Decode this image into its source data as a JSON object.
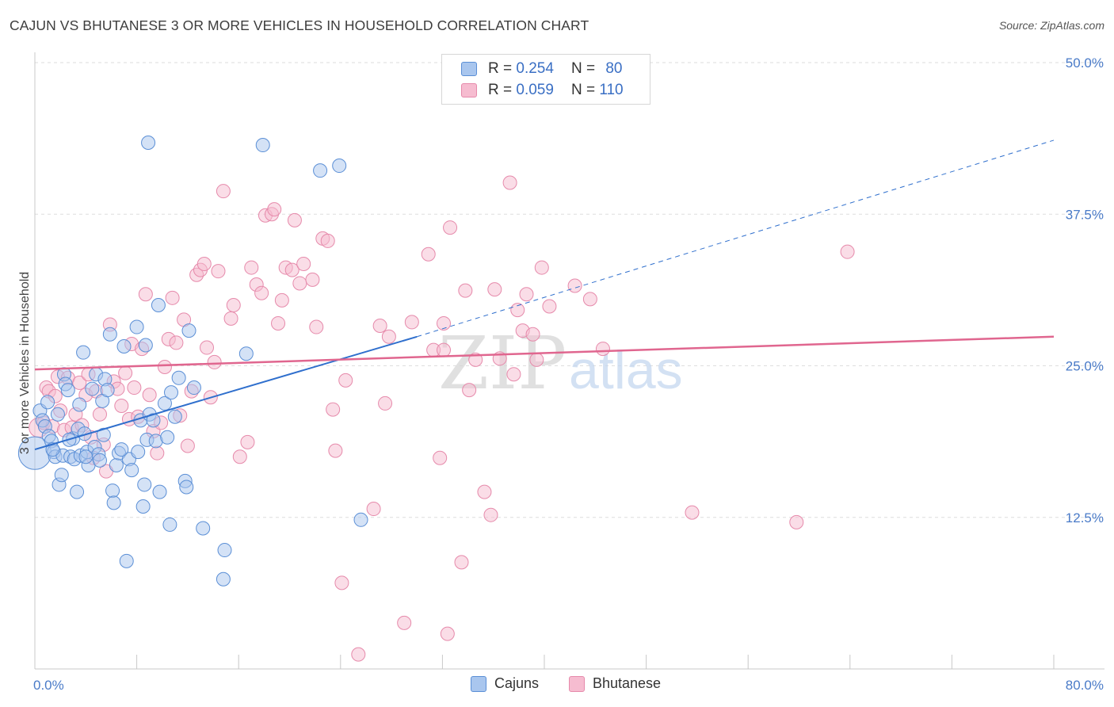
{
  "header": {
    "title": "CAJUN VS BHUTANESE 3 OR MORE VEHICLES IN HOUSEHOLD CORRELATION CHART",
    "source": "Source: ZipAtlas.com"
  },
  "legend": {
    "rows": [
      {
        "r_label": "R =",
        "r_value": "0.254",
        "n_label": "N =",
        "n_value": "80"
      },
      {
        "r_label": "R =",
        "r_value": "0.059",
        "n_label": "N =",
        "n_value": "110"
      }
    ]
  },
  "watermark": {
    "zip": "ZIP",
    "atlas": "atlas"
  },
  "colors": {
    "cajun_fill": "#a9c6ee",
    "cajun_stroke": "#5b8fd6",
    "cajun_line": "#2f6fcd",
    "bhutanese_fill": "#f6bcd0",
    "bhutanese_stroke": "#e68aab",
    "bhutanese_line": "#e0668f",
    "grid": "#dddddd",
    "axis_text": "#4a7bc8"
  },
  "chart_data": {
    "type": "scatter",
    "title": "CAJUN VS BHUTANESE 3 OR MORE VEHICLES IN HOUSEHOLD CORRELATION CHART",
    "xlabel": "",
    "ylabel": "3 or more Vehicles in Household",
    "xlim": [
      0,
      80
    ],
    "ylim": [
      0,
      50
    ],
    "x_tick_labels": [
      "0.0%",
      "80.0%"
    ],
    "y_ticks": [
      12.5,
      25.0,
      37.5,
      50.0
    ],
    "y_tick_labels": [
      "12.5%",
      "25.0%",
      "37.5%",
      "50.0%"
    ],
    "legend_position": "bottom-center",
    "series": [
      {
        "name": "Cajuns",
        "r": 0.254,
        "n": 80,
        "trend": {
          "x0": 0,
          "y0": 18.1,
          "x1": 30,
          "y1": 27.4,
          "dash_x1": 80,
          "dash_y1": 43.6
        },
        "points": [
          [
            0.0,
            17.8,
            1.7
          ],
          [
            0.4,
            21.3,
            0.7
          ],
          [
            0.6,
            20.5,
            0.7
          ],
          [
            0.8,
            20.0,
            0.7
          ],
          [
            1.0,
            22.0,
            0.7
          ],
          [
            1.1,
            19.2,
            0.7
          ],
          [
            1.3,
            18.8,
            0.7
          ],
          [
            1.5,
            17.9,
            0.7
          ],
          [
            1.6,
            17.5,
            0.7
          ],
          [
            1.8,
            21.0,
            0.7
          ],
          [
            1.9,
            15.2,
            0.7
          ],
          [
            2.1,
            16.0,
            0.7
          ],
          [
            2.2,
            17.6,
            0.7
          ],
          [
            2.3,
            24.3,
            0.7
          ],
          [
            2.4,
            23.5,
            0.7
          ],
          [
            2.6,
            23.0,
            0.7
          ],
          [
            2.8,
            17.5,
            0.7
          ],
          [
            3.0,
            19.0,
            0.7
          ],
          [
            3.1,
            17.3,
            0.7
          ],
          [
            3.3,
            14.6,
            0.7
          ],
          [
            3.4,
            19.8,
            0.7
          ],
          [
            3.5,
            21.8,
            0.7
          ],
          [
            3.6,
            17.6,
            0.7
          ],
          [
            3.8,
            26.1,
            0.7
          ],
          [
            3.9,
            19.4,
            0.7
          ],
          [
            4.1,
            17.9,
            0.7
          ],
          [
            4.2,
            16.8,
            0.7
          ],
          [
            4.5,
            23.1,
            0.7
          ],
          [
            4.7,
            18.3,
            0.7
          ],
          [
            4.8,
            24.3,
            0.7
          ],
          [
            5.0,
            17.7,
            0.7
          ],
          [
            5.1,
            17.2,
            0.7
          ],
          [
            5.3,
            22.1,
            0.7
          ],
          [
            5.5,
            23.9,
            0.7
          ],
          [
            5.7,
            23.0,
            0.7
          ],
          [
            5.9,
            27.6,
            0.7
          ],
          [
            6.1,
            14.7,
            0.7
          ],
          [
            6.2,
            13.7,
            0.7
          ],
          [
            6.4,
            16.8,
            0.7
          ],
          [
            6.6,
            17.8,
            0.7
          ],
          [
            7.0,
            26.6,
            0.7
          ],
          [
            7.2,
            8.9,
            0.7
          ],
          [
            7.4,
            17.3,
            0.7
          ],
          [
            7.6,
            16.4,
            0.7
          ],
          [
            8.0,
            28.2,
            0.7
          ],
          [
            8.1,
            17.9,
            0.7
          ],
          [
            8.3,
            20.5,
            0.7
          ],
          [
            8.5,
            13.4,
            0.7
          ],
          [
            8.6,
            15.2,
            0.7
          ],
          [
            8.8,
            18.9,
            0.7
          ],
          [
            8.9,
            43.4,
            0.7
          ],
          [
            8.7,
            26.7,
            0.7
          ],
          [
            9.0,
            21.0,
            0.7
          ],
          [
            9.3,
            20.5,
            0.7
          ],
          [
            9.5,
            18.8,
            0.7
          ],
          [
            9.7,
            30.0,
            0.7
          ],
          [
            9.8,
            14.6,
            0.7
          ],
          [
            10.2,
            21.9,
            0.7
          ],
          [
            10.4,
            19.1,
            0.7
          ],
          [
            10.6,
            11.9,
            0.7
          ],
          [
            10.7,
            22.8,
            0.7
          ],
          [
            11.0,
            20.8,
            0.7
          ],
          [
            11.3,
            24.0,
            0.7
          ],
          [
            11.8,
            15.5,
            0.7
          ],
          [
            11.9,
            15.0,
            0.7
          ],
          [
            12.1,
            27.9,
            0.7
          ],
          [
            12.5,
            23.2,
            0.7
          ],
          [
            13.2,
            11.6,
            0.7
          ],
          [
            14.9,
            9.8,
            0.7
          ],
          [
            14.8,
            7.4,
            0.7
          ],
          [
            16.6,
            26.0,
            0.7
          ],
          [
            17.9,
            43.2,
            0.7
          ],
          [
            22.4,
            41.1,
            0.7
          ],
          [
            23.9,
            41.5,
            0.7
          ],
          [
            25.6,
            12.3,
            0.7
          ],
          [
            1.4,
            18.1,
            0.7
          ],
          [
            2.7,
            18.9,
            0.7
          ],
          [
            4.0,
            17.5,
            0.7
          ],
          [
            5.4,
            19.3,
            0.7
          ],
          [
            6.8,
            18.1,
            0.7
          ]
        ]
      },
      {
        "name": "Bhutanese",
        "r": 0.059,
        "n": 110,
        "trend": {
          "x0": 0,
          "y0": 24.7,
          "x1": 80,
          "y1": 27.4
        },
        "points": [
          [
            0.3,
            19.9,
            1.0
          ],
          [
            0.7,
            20.3,
            0.7
          ],
          [
            0.9,
            23.2,
            0.7
          ],
          [
            1.1,
            22.9,
            0.7
          ],
          [
            1.4,
            20.0,
            0.7
          ],
          [
            1.6,
            22.5,
            0.7
          ],
          [
            1.8,
            24.1,
            0.7
          ],
          [
            2.0,
            21.3,
            0.7
          ],
          [
            2.3,
            19.7,
            0.7
          ],
          [
            2.6,
            24.0,
            0.7
          ],
          [
            2.9,
            19.9,
            0.7
          ],
          [
            3.2,
            21.0,
            0.7
          ],
          [
            3.5,
            23.6,
            0.7
          ],
          [
            3.7,
            20.1,
            0.7
          ],
          [
            4.0,
            22.6,
            0.7
          ],
          [
            4.2,
            24.3,
            0.7
          ],
          [
            4.4,
            19.1,
            0.7
          ],
          [
            4.6,
            17.4,
            0.7
          ],
          [
            4.8,
            22.9,
            0.7
          ],
          [
            5.1,
            21.0,
            0.7
          ],
          [
            5.4,
            18.5,
            0.7
          ],
          [
            5.6,
            16.3,
            0.7
          ],
          [
            5.9,
            28.4,
            0.7
          ],
          [
            6.2,
            23.7,
            0.7
          ],
          [
            6.5,
            23.1,
            0.7
          ],
          [
            6.8,
            21.7,
            0.7
          ],
          [
            7.1,
            24.4,
            0.7
          ],
          [
            7.4,
            20.6,
            0.7
          ],
          [
            7.6,
            26.8,
            0.7
          ],
          [
            7.8,
            23.2,
            0.7
          ],
          [
            8.1,
            20.8,
            0.7
          ],
          [
            8.4,
            26.4,
            0.7
          ],
          [
            8.7,
            30.9,
            0.7
          ],
          [
            9.0,
            22.6,
            0.7
          ],
          [
            9.3,
            19.6,
            0.7
          ],
          [
            9.6,
            17.8,
            0.7
          ],
          [
            9.9,
            20.3,
            0.7
          ],
          [
            10.2,
            24.9,
            0.7
          ],
          [
            10.5,
            27.2,
            0.7
          ],
          [
            10.8,
            30.6,
            0.7
          ],
          [
            11.1,
            26.9,
            0.7
          ],
          [
            11.4,
            20.9,
            0.7
          ],
          [
            11.7,
            28.8,
            0.7
          ],
          [
            12.0,
            18.4,
            0.7
          ],
          [
            12.3,
            22.9,
            0.7
          ],
          [
            12.7,
            32.5,
            0.7
          ],
          [
            13.0,
            32.9,
            0.7
          ],
          [
            13.3,
            33.4,
            0.7
          ],
          [
            13.5,
            26.5,
            0.7
          ],
          [
            13.8,
            22.4,
            0.7
          ],
          [
            14.1,
            25.3,
            0.7
          ],
          [
            14.4,
            32.8,
            0.7
          ],
          [
            14.8,
            39.4,
            0.7
          ],
          [
            15.4,
            28.9,
            0.7
          ],
          [
            15.6,
            30.0,
            0.7
          ],
          [
            16.1,
            17.5,
            0.7
          ],
          [
            16.7,
            18.7,
            0.7
          ],
          [
            17.0,
            33.1,
            0.7
          ],
          [
            17.4,
            31.7,
            0.7
          ],
          [
            17.8,
            31.0,
            0.7
          ],
          [
            18.1,
            37.4,
            0.7
          ],
          [
            18.6,
            37.5,
            0.7
          ],
          [
            18.8,
            37.9,
            0.7
          ],
          [
            19.1,
            28.5,
            0.7
          ],
          [
            19.4,
            30.4,
            0.7
          ],
          [
            19.7,
            33.1,
            0.7
          ],
          [
            20.2,
            32.9,
            0.7
          ],
          [
            20.4,
            37.0,
            0.7
          ],
          [
            20.8,
            31.8,
            0.7
          ],
          [
            21.1,
            33.4,
            0.7
          ],
          [
            21.8,
            32.1,
            0.7
          ],
          [
            22.1,
            28.2,
            0.7
          ],
          [
            22.6,
            35.5,
            0.7
          ],
          [
            23.0,
            35.3,
            0.7
          ],
          [
            23.4,
            21.4,
            0.7
          ],
          [
            23.6,
            18.0,
            0.7
          ],
          [
            24.1,
            7.1,
            0.7
          ],
          [
            24.4,
            23.8,
            0.7
          ],
          [
            25.4,
            1.2,
            0.7
          ],
          [
            26.6,
            13.2,
            0.7
          ],
          [
            27.1,
            28.3,
            0.7
          ],
          [
            27.5,
            21.9,
            0.7
          ],
          [
            27.8,
            27.4,
            0.7
          ],
          [
            29.0,
            3.8,
            0.7
          ],
          [
            29.6,
            28.6,
            0.7
          ],
          [
            30.9,
            34.2,
            0.7
          ],
          [
            31.3,
            26.3,
            0.7
          ],
          [
            31.8,
            17.4,
            0.7
          ],
          [
            32.1,
            28.5,
            0.7
          ],
          [
            32.1,
            26.3,
            0.7
          ],
          [
            32.4,
            2.9,
            0.7
          ],
          [
            32.6,
            36.4,
            0.7
          ],
          [
            33.5,
            8.8,
            0.7
          ],
          [
            33.8,
            31.2,
            0.7
          ],
          [
            34.1,
            23.0,
            0.7
          ],
          [
            34.6,
            25.5,
            0.7
          ],
          [
            35.3,
            14.6,
            0.7
          ],
          [
            35.8,
            12.7,
            0.7
          ],
          [
            36.1,
            31.3,
            0.7
          ],
          [
            36.5,
            25.6,
            0.7
          ],
          [
            37.3,
            40.1,
            0.7
          ],
          [
            37.6,
            24.3,
            0.7
          ],
          [
            37.9,
            29.6,
            0.7
          ],
          [
            38.3,
            27.9,
            0.7
          ],
          [
            38.6,
            30.9,
            0.7
          ],
          [
            39.1,
            27.6,
            0.7
          ],
          [
            39.4,
            25.5,
            0.7
          ],
          [
            39.8,
            33.1,
            0.7
          ],
          [
            40.4,
            29.9,
            0.7
          ],
          [
            42.4,
            31.6,
            0.7
          ],
          [
            43.6,
            30.5,
            0.7
          ],
          [
            44.6,
            26.4,
            0.7
          ],
          [
            51.6,
            12.9,
            0.7
          ],
          [
            59.8,
            12.1,
            0.7
          ],
          [
            63.8,
            34.4,
            0.7
          ]
        ]
      }
    ]
  },
  "bottom_legend": {
    "items": [
      {
        "label": "Cajuns"
      },
      {
        "label": "Bhutanese"
      }
    ]
  }
}
